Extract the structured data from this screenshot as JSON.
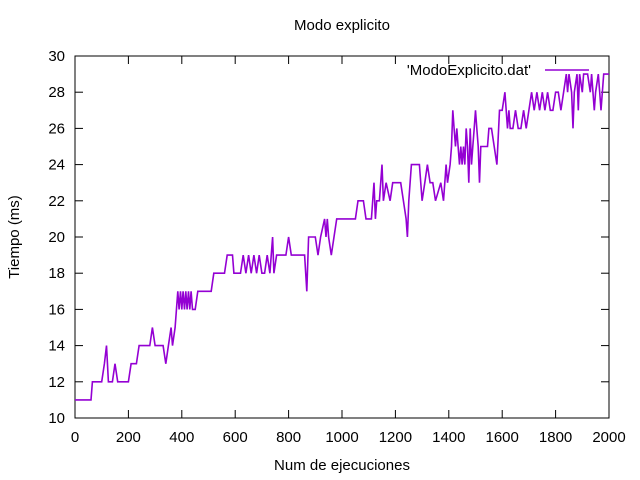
{
  "chart_data": {
    "type": "line",
    "title": "Modo explicito",
    "xlabel": "Num de ejecuciones",
    "ylabel": "Tiempo (ms)",
    "xlim": [
      0,
      2000
    ],
    "ylim": [
      10,
      30
    ],
    "xticks": [
      0,
      200,
      400,
      600,
      800,
      1000,
      1200,
      1400,
      1600,
      1800,
      2000
    ],
    "yticks": [
      10,
      12,
      14,
      16,
      18,
      20,
      22,
      24,
      26,
      28,
      30
    ],
    "grid": false,
    "legend_position": "top-right",
    "series": [
      {
        "name": "'ModoExplicito.dat'",
        "color": "#9400d3",
        "points": [
          [
            0,
            11
          ],
          [
            30,
            11
          ],
          [
            60,
            11
          ],
          [
            65,
            12
          ],
          [
            100,
            12
          ],
          [
            110,
            13
          ],
          [
            118,
            14
          ],
          [
            125,
            12
          ],
          [
            140,
            12
          ],
          [
            150,
            13
          ],
          [
            160,
            12
          ],
          [
            195,
            12
          ],
          [
            200,
            12
          ],
          [
            210,
            13
          ],
          [
            230,
            13
          ],
          [
            240,
            14
          ],
          [
            280,
            14
          ],
          [
            290,
            15
          ],
          [
            300,
            14
          ],
          [
            330,
            14
          ],
          [
            340,
            13
          ],
          [
            350,
            14
          ],
          [
            360,
            15
          ],
          [
            365,
            14
          ],
          [
            375,
            15
          ],
          [
            385,
            17
          ],
          [
            390,
            16
          ],
          [
            395,
            17
          ],
          [
            400,
            16
          ],
          [
            405,
            17
          ],
          [
            410,
            16
          ],
          [
            415,
            17
          ],
          [
            420,
            16
          ],
          [
            425,
            17
          ],
          [
            430,
            16
          ],
          [
            435,
            17
          ],
          [
            440,
            16
          ],
          [
            450,
            16
          ],
          [
            460,
            17
          ],
          [
            510,
            17
          ],
          [
            520,
            18
          ],
          [
            560,
            18
          ],
          [
            570,
            19
          ],
          [
            590,
            19
          ],
          [
            595,
            18
          ],
          [
            620,
            18
          ],
          [
            630,
            19
          ],
          [
            640,
            18
          ],
          [
            650,
            19
          ],
          [
            660,
            18
          ],
          [
            670,
            19
          ],
          [
            680,
            18
          ],
          [
            690,
            19
          ],
          [
            700,
            18
          ],
          [
            710,
            18
          ],
          [
            720,
            19
          ],
          [
            730,
            18
          ],
          [
            740,
            20
          ],
          [
            745,
            18
          ],
          [
            755,
            19
          ],
          [
            790,
            19
          ],
          [
            800,
            20
          ],
          [
            810,
            19
          ],
          [
            860,
            19
          ],
          [
            868,
            17
          ],
          [
            875,
            20
          ],
          [
            900,
            20
          ],
          [
            910,
            19
          ],
          [
            920,
            20
          ],
          [
            935,
            21
          ],
          [
            940,
            20
          ],
          [
            945,
            21
          ],
          [
            950,
            20
          ],
          [
            960,
            19
          ],
          [
            970,
            20
          ],
          [
            980,
            21
          ],
          [
            1000,
            21
          ],
          [
            1050,
            21
          ],
          [
            1060,
            22
          ],
          [
            1080,
            22
          ],
          [
            1090,
            21
          ],
          [
            1110,
            21
          ],
          [
            1120,
            23
          ],
          [
            1125,
            21
          ],
          [
            1130,
            22
          ],
          [
            1140,
            22
          ],
          [
            1150,
            24
          ],
          [
            1155,
            22
          ],
          [
            1165,
            23
          ],
          [
            1180,
            22
          ],
          [
            1190,
            23
          ],
          [
            1220,
            23
          ],
          [
            1230,
            22
          ],
          [
            1240,
            21
          ],
          [
            1245,
            20
          ],
          [
            1250,
            22
          ],
          [
            1260,
            24
          ],
          [
            1290,
            24
          ],
          [
            1300,
            22
          ],
          [
            1310,
            23
          ],
          [
            1320,
            24
          ],
          [
            1330,
            23
          ],
          [
            1340,
            23
          ],
          [
            1350,
            22
          ],
          [
            1370,
            23
          ],
          [
            1380,
            22
          ],
          [
            1390,
            24
          ],
          [
            1395,
            23
          ],
          [
            1405,
            24
          ],
          [
            1410,
            25
          ],
          [
            1415,
            27
          ],
          [
            1420,
            26
          ],
          [
            1425,
            25
          ],
          [
            1430,
            26
          ],
          [
            1435,
            25
          ],
          [
            1440,
            24
          ],
          [
            1445,
            25
          ],
          [
            1450,
            24
          ],
          [
            1455,
            25
          ],
          [
            1460,
            24
          ],
          [
            1465,
            26
          ],
          [
            1470,
            25
          ],
          [
            1475,
            23
          ],
          [
            1480,
            26
          ],
          [
            1485,
            24
          ],
          [
            1490,
            25
          ],
          [
            1495,
            26
          ],
          [
            1500,
            27
          ],
          [
            1505,
            26
          ],
          [
            1510,
            25
          ],
          [
            1515,
            23
          ],
          [
            1520,
            25
          ],
          [
            1530,
            25
          ],
          [
            1545,
            25
          ],
          [
            1550,
            26
          ],
          [
            1560,
            26
          ],
          [
            1570,
            25
          ],
          [
            1580,
            24
          ],
          [
            1590,
            27
          ],
          [
            1600,
            27
          ],
          [
            1610,
            28
          ],
          [
            1615,
            27
          ],
          [
            1620,
            26
          ],
          [
            1625,
            27
          ],
          [
            1630,
            26
          ],
          [
            1640,
            26
          ],
          [
            1650,
            27
          ],
          [
            1660,
            26
          ],
          [
            1670,
            26
          ],
          [
            1680,
            27
          ],
          [
            1690,
            26
          ],
          [
            1700,
            27
          ],
          [
            1710,
            28
          ],
          [
            1720,
            27
          ],
          [
            1730,
            28
          ],
          [
            1740,
            27
          ],
          [
            1750,
            28
          ],
          [
            1760,
            27
          ],
          [
            1770,
            28
          ],
          [
            1780,
            27
          ],
          [
            1790,
            27
          ],
          [
            1800,
            28
          ],
          [
            1810,
            28
          ],
          [
            1820,
            27
          ],
          [
            1830,
            28
          ],
          [
            1840,
            29
          ],
          [
            1845,
            28
          ],
          [
            1850,
            29
          ],
          [
            1860,
            28
          ],
          [
            1865,
            26
          ],
          [
            1870,
            28
          ],
          [
            1880,
            29
          ],
          [
            1885,
            27
          ],
          [
            1890,
            29
          ],
          [
            1900,
            28
          ],
          [
            1905,
            29
          ],
          [
            1920,
            29
          ],
          [
            1930,
            28
          ],
          [
            1935,
            29
          ],
          [
            1945,
            27
          ],
          [
            1950,
            28
          ],
          [
            1960,
            29
          ],
          [
            1965,
            28
          ],
          [
            1970,
            27
          ],
          [
            1980,
            29
          ],
          [
            1990,
            29
          ],
          [
            2000,
            29
          ]
        ]
      }
    ]
  }
}
